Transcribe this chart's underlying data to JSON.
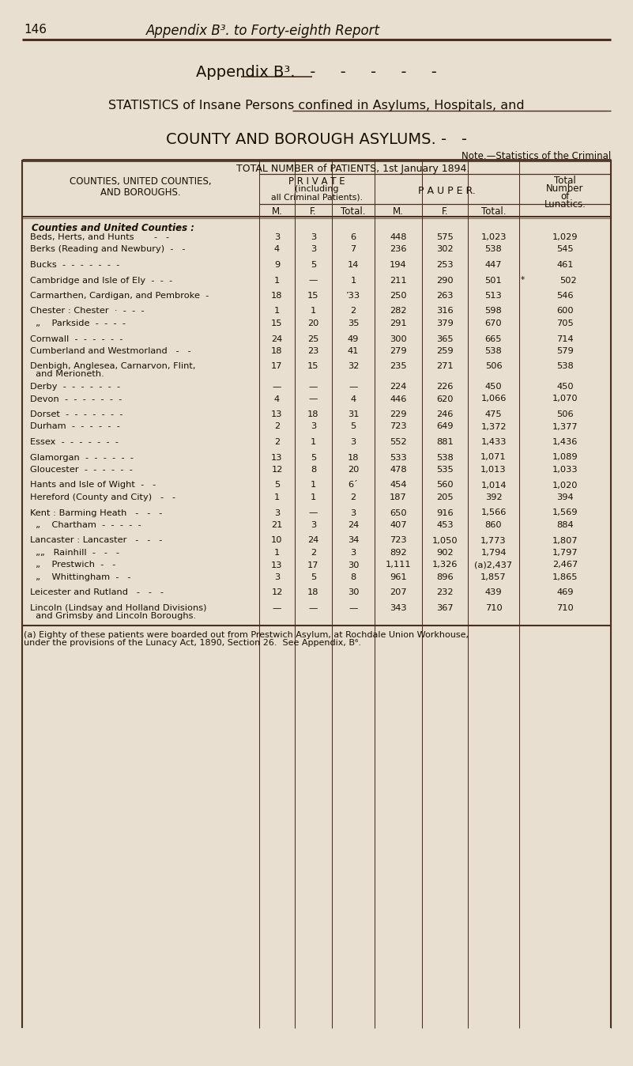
{
  "page_header_num": "146",
  "page_header_title": "Appendix B³. to Forty-eighth Report",
  "appendix_title": "Appendix B³.",
  "stat_title": "STATISTICS of Insane Persons confined in Asylums, Hospitals, and",
  "county_title": "COUNTY AND BOROUGH ASYLUMS. -   -",
  "note_text": "Note.—Statistics of the Criminal",
  "table_header1": "TOTAL NUMBER of PATIENTS, 1st January 1894.",
  "private_header_line1": "P R I V A T E",
  "private_header_line2": "(including",
  "private_header_line3": "all Criminal Patients).",
  "pauper_header": "P A U P E R.",
  "total_header_line1": "Total",
  "total_header_line2": "Number",
  "total_header_line3": "of",
  "total_header_line4": "Lunatics.",
  "col1_header_line1": "COUNTIES, UNITED COUNTIES,",
  "col1_header_line2": "AND BOROUGHS.",
  "section_header": "Counties and United Counties :",
  "rows": [
    {
      "name": "Beds, Herts, and Hunts       -   -",
      "pm": "3",
      "pf": "3",
      "pt": "6",
      "um": "448",
      "uf": "575",
      "ut": "1,023",
      "tot": "1,029",
      "gap_after": false
    },
    {
      "name": "Berks (Reading and Newbury)  -   -",
      "pm": "4",
      "pf": "3",
      "pt": "7",
      "um": "236",
      "uf": "302",
      "ut": "538",
      "tot": "545",
      "gap_after": true
    },
    {
      "name": "Bucks  -  -  -  -  -  -  -",
      "pm": "9",
      "pf": "5",
      "pt": "14",
      "um": "194",
      "uf": "253",
      "ut": "447",
      "tot": "461",
      "gap_after": true
    },
    {
      "name": "Cambridge and Isle of Ely  -  -  -",
      "pm": "1",
      "pf": "—",
      "pt": "1",
      "um": "211",
      "uf": "290",
      "ut": "501",
      "tot": "502",
      "note": "*",
      "gap_after": true
    },
    {
      "name": "Carmarthen, Cardigan, and Pembroke  -",
      "pm": "18",
      "pf": "15",
      "pt": "’33",
      "um": "250",
      "uf": "263",
      "ut": "513",
      "tot": "546",
      "gap_after": true
    },
    {
      "name": "Chester : Chester  ·  -  -  -",
      "pm": "1",
      "pf": "1",
      "pt": "2",
      "um": "282",
      "uf": "316",
      "ut": "598",
      "tot": "600",
      "gap_after": false
    },
    {
      "name": "  „    Parkside  -  -  -  -",
      "pm": "15",
      "pf": "20",
      "pt": "35",
      "um": "291",
      "uf": "379",
      "ut": "670",
      "tot": "705",
      "gap_after": true
    },
    {
      "name": "Cornwall  -  -  -  -  -  -",
      "pm": "24",
      "pf": "25",
      "pt": "49",
      "um": "300",
      "uf": "365",
      "ut": "665",
      "tot": "714",
      "gap_after": false
    },
    {
      "name": "Cumberland and Westmorland   -   -",
      "pm": "18",
      "pf": "23",
      "pt": "41",
      "um": "279",
      "uf": "259",
      "ut": "538",
      "tot": "579",
      "gap_after": true
    },
    {
      "name": "Denbigh, Anglesea, Carnarvon, Flint,",
      "name2": "  and Merioneth.",
      "pm": "17",
      "pf": "15",
      "pt": "32",
      "um": "235",
      "uf": "271",
      "ut": "506",
      "tot": "538",
      "gap_after": false
    },
    {
      "name": "Derby  -  -  -  -  -  -  -",
      "pm": "—",
      "pf": "—",
      "pt": "—",
      "um": "224",
      "uf": "226",
      "ut": "450",
      "tot": "450",
      "gap_after": false
    },
    {
      "name": "Devon  -  -  -  -  -  -  -",
      "pm": "4",
      "pf": "—",
      "pt": "4",
      "um": "446",
      "uf": "620",
      "ut": "1,066",
      "tot": "1,070",
      "gap_after": true
    },
    {
      "name": "Dorset  -  -  -  -  -  -  -",
      "pm": "13",
      "pf": "18",
      "pt": "31",
      "um": "229",
      "uf": "246",
      "ut": "475",
      "tot": "506",
      "gap_after": false
    },
    {
      "name": "Durham  -  -  -  -  -  -",
      "pm": "2",
      "pf": "3",
      "pt": "5",
      "um": "723",
      "uf": "649",
      "ut": "1,372",
      "tot": "1,377",
      "gap_after": true
    },
    {
      "name": "Essex  -  -  -  -  -  -  -",
      "pm": "2",
      "pf": "1",
      "pt": "3",
      "um": "552",
      "uf": "881",
      "ut": "1,433",
      "tot": "1,436",
      "gap_after": true
    },
    {
      "name": "Glamorgan  -  -  -  -  -  -",
      "pm": "13",
      "pf": "5",
      "pt": "18",
      "um": "533",
      "uf": "538",
      "ut": "1,071",
      "tot": "1,089",
      "gap_after": false
    },
    {
      "name": "Gloucester  -  -  -  -  -  -",
      "pm": "12",
      "pf": "8",
      "pt": "20",
      "um": "478",
      "uf": "535",
      "ut": "1,013",
      "tot": "1,033",
      "gap_after": true
    },
    {
      "name": "Hants and Isle of Wight  -   -",
      "pm": "5",
      "pf": "1",
      "pt": "6´",
      "um": "454",
      "uf": "560",
      "ut": "1,014",
      "tot": "1,020",
      "gap_after": false
    },
    {
      "name": "Hereford (County and City)   -   -",
      "pm": "1",
      "pf": "1",
      "pt": "2",
      "um": "187",
      "uf": "205",
      "ut": "392",
      "tot": "394",
      "gap_after": true
    },
    {
      "name": "Kent : Barming Heath   -   -   -",
      "pm": "3",
      "pf": "—",
      "pt": "3",
      "um": "650",
      "uf": "916",
      "ut": "1,566",
      "tot": "1,569",
      "gap_after": false
    },
    {
      "name": "  „    Chartham  -  -  -  -  -",
      "pm": "21",
      "pf": "3",
      "pt": "24",
      "um": "407",
      "uf": "453",
      "ut": "860",
      "tot": "884",
      "gap_after": true
    },
    {
      "name": "Lancaster : Lancaster   -   -   -",
      "pm": "10",
      "pf": "24",
      "pt": "34",
      "um": "723",
      "uf": "1,050",
      "ut": "1,773",
      "tot": "1,807",
      "gap_after": false
    },
    {
      "name": "  „„   Rainhill  -   -   -",
      "pm": "1",
      "pf": "2",
      "pt": "3",
      "um": "892",
      "uf": "902",
      "ut": "1,794",
      "tot": "1,797",
      "gap_after": false
    },
    {
      "name": "  „    Prestwich  -   -",
      "pm": "13",
      "pf": "17",
      "pt": "30",
      "um": "1,111",
      "uf": "1,326",
      "ut": "(a)2,437",
      "tot": "2,467",
      "gap_after": false
    },
    {
      "name": "  „    Whittingham  -   -",
      "pm": "3",
      "pf": "5",
      "pt": "8",
      "um": "961",
      "uf": "896",
      "ut": "1,857",
      "tot": "1,865",
      "gap_after": true
    },
    {
      "name": "Leicester and Rutland   -   -   -",
      "pm": "12",
      "pf": "18",
      "pt": "30",
      "um": "207",
      "uf": "232",
      "ut": "439",
      "tot": "469",
      "gap_after": true
    },
    {
      "name": "Lincoln (Lindsay and Holland Divisions)",
      "name2": "  and Grimsby and Lincoln Boroughs.",
      "pm": "—",
      "pf": "—",
      "pt": "—",
      "um": "343",
      "uf": "367",
      "ut": "710",
      "tot": "710",
      "gap_after": false
    }
  ],
  "footnote_line1": "(a) Eighty of these patients were boarded out from Prestwich Asylum, at Rochdale Union Workhouse,",
  "footnote_line2": "under the provisions of the Lunacy Act, 1890, Section 26.  See Appendix, B⁶.",
  "bg_color": "#e8dfd0",
  "text_color": "#1a0f00",
  "line_color": "#4a3020"
}
